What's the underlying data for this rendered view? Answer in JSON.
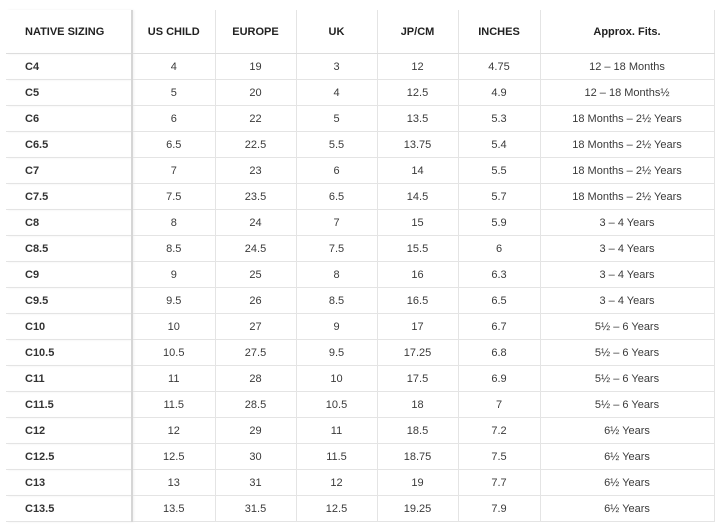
{
  "table": {
    "header": [
      "NATIVE SIZING",
      "US CHILD",
      "EUROPE",
      "UK",
      "JP/CM",
      "INCHES",
      "Approx. Fits."
    ],
    "rows": [
      [
        "C4",
        "4",
        "19",
        "3",
        "12",
        "4.75",
        "12 – 18 Months"
      ],
      [
        "C5",
        "5",
        "20",
        "4",
        "12.5",
        "4.9",
        "12 – 18 Months½"
      ],
      [
        "C6",
        "6",
        "22",
        "5",
        "13.5",
        "5.3",
        "18 Months – 2½ Years"
      ],
      [
        "C6.5",
        "6.5",
        "22.5",
        "5.5",
        "13.75",
        "5.4",
        "18 Months – 2½ Years"
      ],
      [
        "C7",
        "7",
        "23",
        "6",
        "14",
        "5.5",
        "18 Months – 2½ Years"
      ],
      [
        "C7.5",
        "7.5",
        "23.5",
        "6.5",
        "14.5",
        "5.7",
        "18 Months – 2½ Years"
      ],
      [
        "C8",
        "8",
        "24",
        "7",
        "15",
        "5.9",
        "3 – 4 Years"
      ],
      [
        "C8.5",
        "8.5",
        "24.5",
        "7.5",
        "15.5",
        "6",
        "3 – 4 Years"
      ],
      [
        "C9",
        "9",
        "25",
        "8",
        "16",
        "6.3",
        "3 – 4 Years"
      ],
      [
        "C9.5",
        "9.5",
        "26",
        "8.5",
        "16.5",
        "6.5",
        "3 – 4 Years"
      ],
      [
        "C10",
        "10",
        "27",
        "9",
        "17",
        "6.7",
        "5½ – 6 Years"
      ],
      [
        "C10.5",
        "10.5",
        "27.5",
        "9.5",
        "17.25",
        "6.8",
        "5½ – 6 Years"
      ],
      [
        "C11",
        "11",
        "28",
        "10",
        "17.5",
        "6.9",
        "5½ – 6 Years"
      ],
      [
        "C11.5",
        "11.5",
        "28.5",
        "10.5",
        "18",
        "7",
        "5½ – 6 Years"
      ],
      [
        "C12",
        "12",
        "29",
        "11",
        "18.5",
        "7.2",
        "6½ Years"
      ],
      [
        "C12.5",
        "12.5",
        "30",
        "11.5",
        "18.75",
        "7.5",
        "6½ Years"
      ],
      [
        "C13",
        "13",
        "31",
        "12",
        "19",
        "7.7",
        "6½ Years"
      ],
      [
        "C13.5",
        "13.5",
        "31.5",
        "12.5",
        "19.25",
        "7.9",
        "6½ Years"
      ]
    ]
  }
}
